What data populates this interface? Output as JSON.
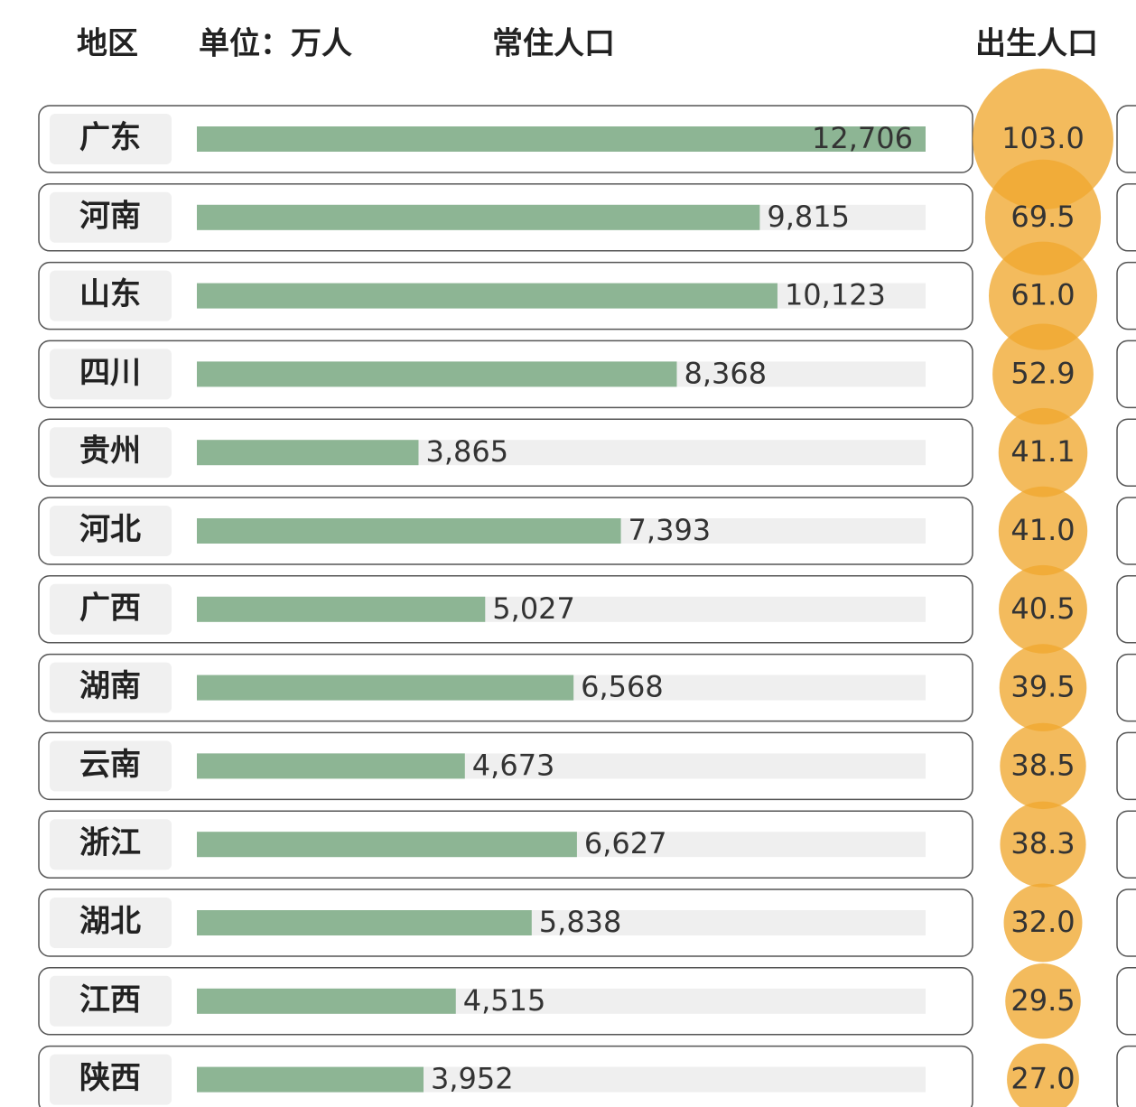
{
  "chart_data": {
    "type": "bar",
    "category_label": "地区",
    "unit": "单位：万人",
    "categories": [
      "广东",
      "河南",
      "山东",
      "四川",
      "贵州",
      "河北",
      "广西",
      "湖南",
      "云南",
      "浙江",
      "湖北",
      "江西",
      "陕西"
    ],
    "series": [
      {
        "name": "常住人口",
        "color": "#8db594",
        "values": [
          12706,
          9815,
          10123,
          8368,
          3865,
          7393,
          5027,
          6568,
          4673,
          6627,
          5838,
          4515,
          3952
        ],
        "value_labels": [
          "12,706",
          "9,815",
          "10,123",
          "8,368",
          "3,865",
          "7,393",
          "5,027",
          "6,568",
          "4,673",
          "6,627",
          "5,838",
          "4,515",
          "3,952"
        ]
      },
      {
        "name": "出生人口",
        "color": "#f0a830",
        "values": [
          103.0,
          69.5,
          61.0,
          52.9,
          41.1,
          41.0,
          40.5,
          39.5,
          38.5,
          38.3,
          32.0,
          29.5,
          27.0
        ],
        "value_labels": [
          "103.0",
          "69.5",
          "61.0",
          "52.9",
          "41.1",
          "41.0",
          "40.5",
          "39.5",
          "38.5",
          "38.3",
          "32.0",
          "29.5",
          "27.0"
        ]
      }
    ]
  }
}
